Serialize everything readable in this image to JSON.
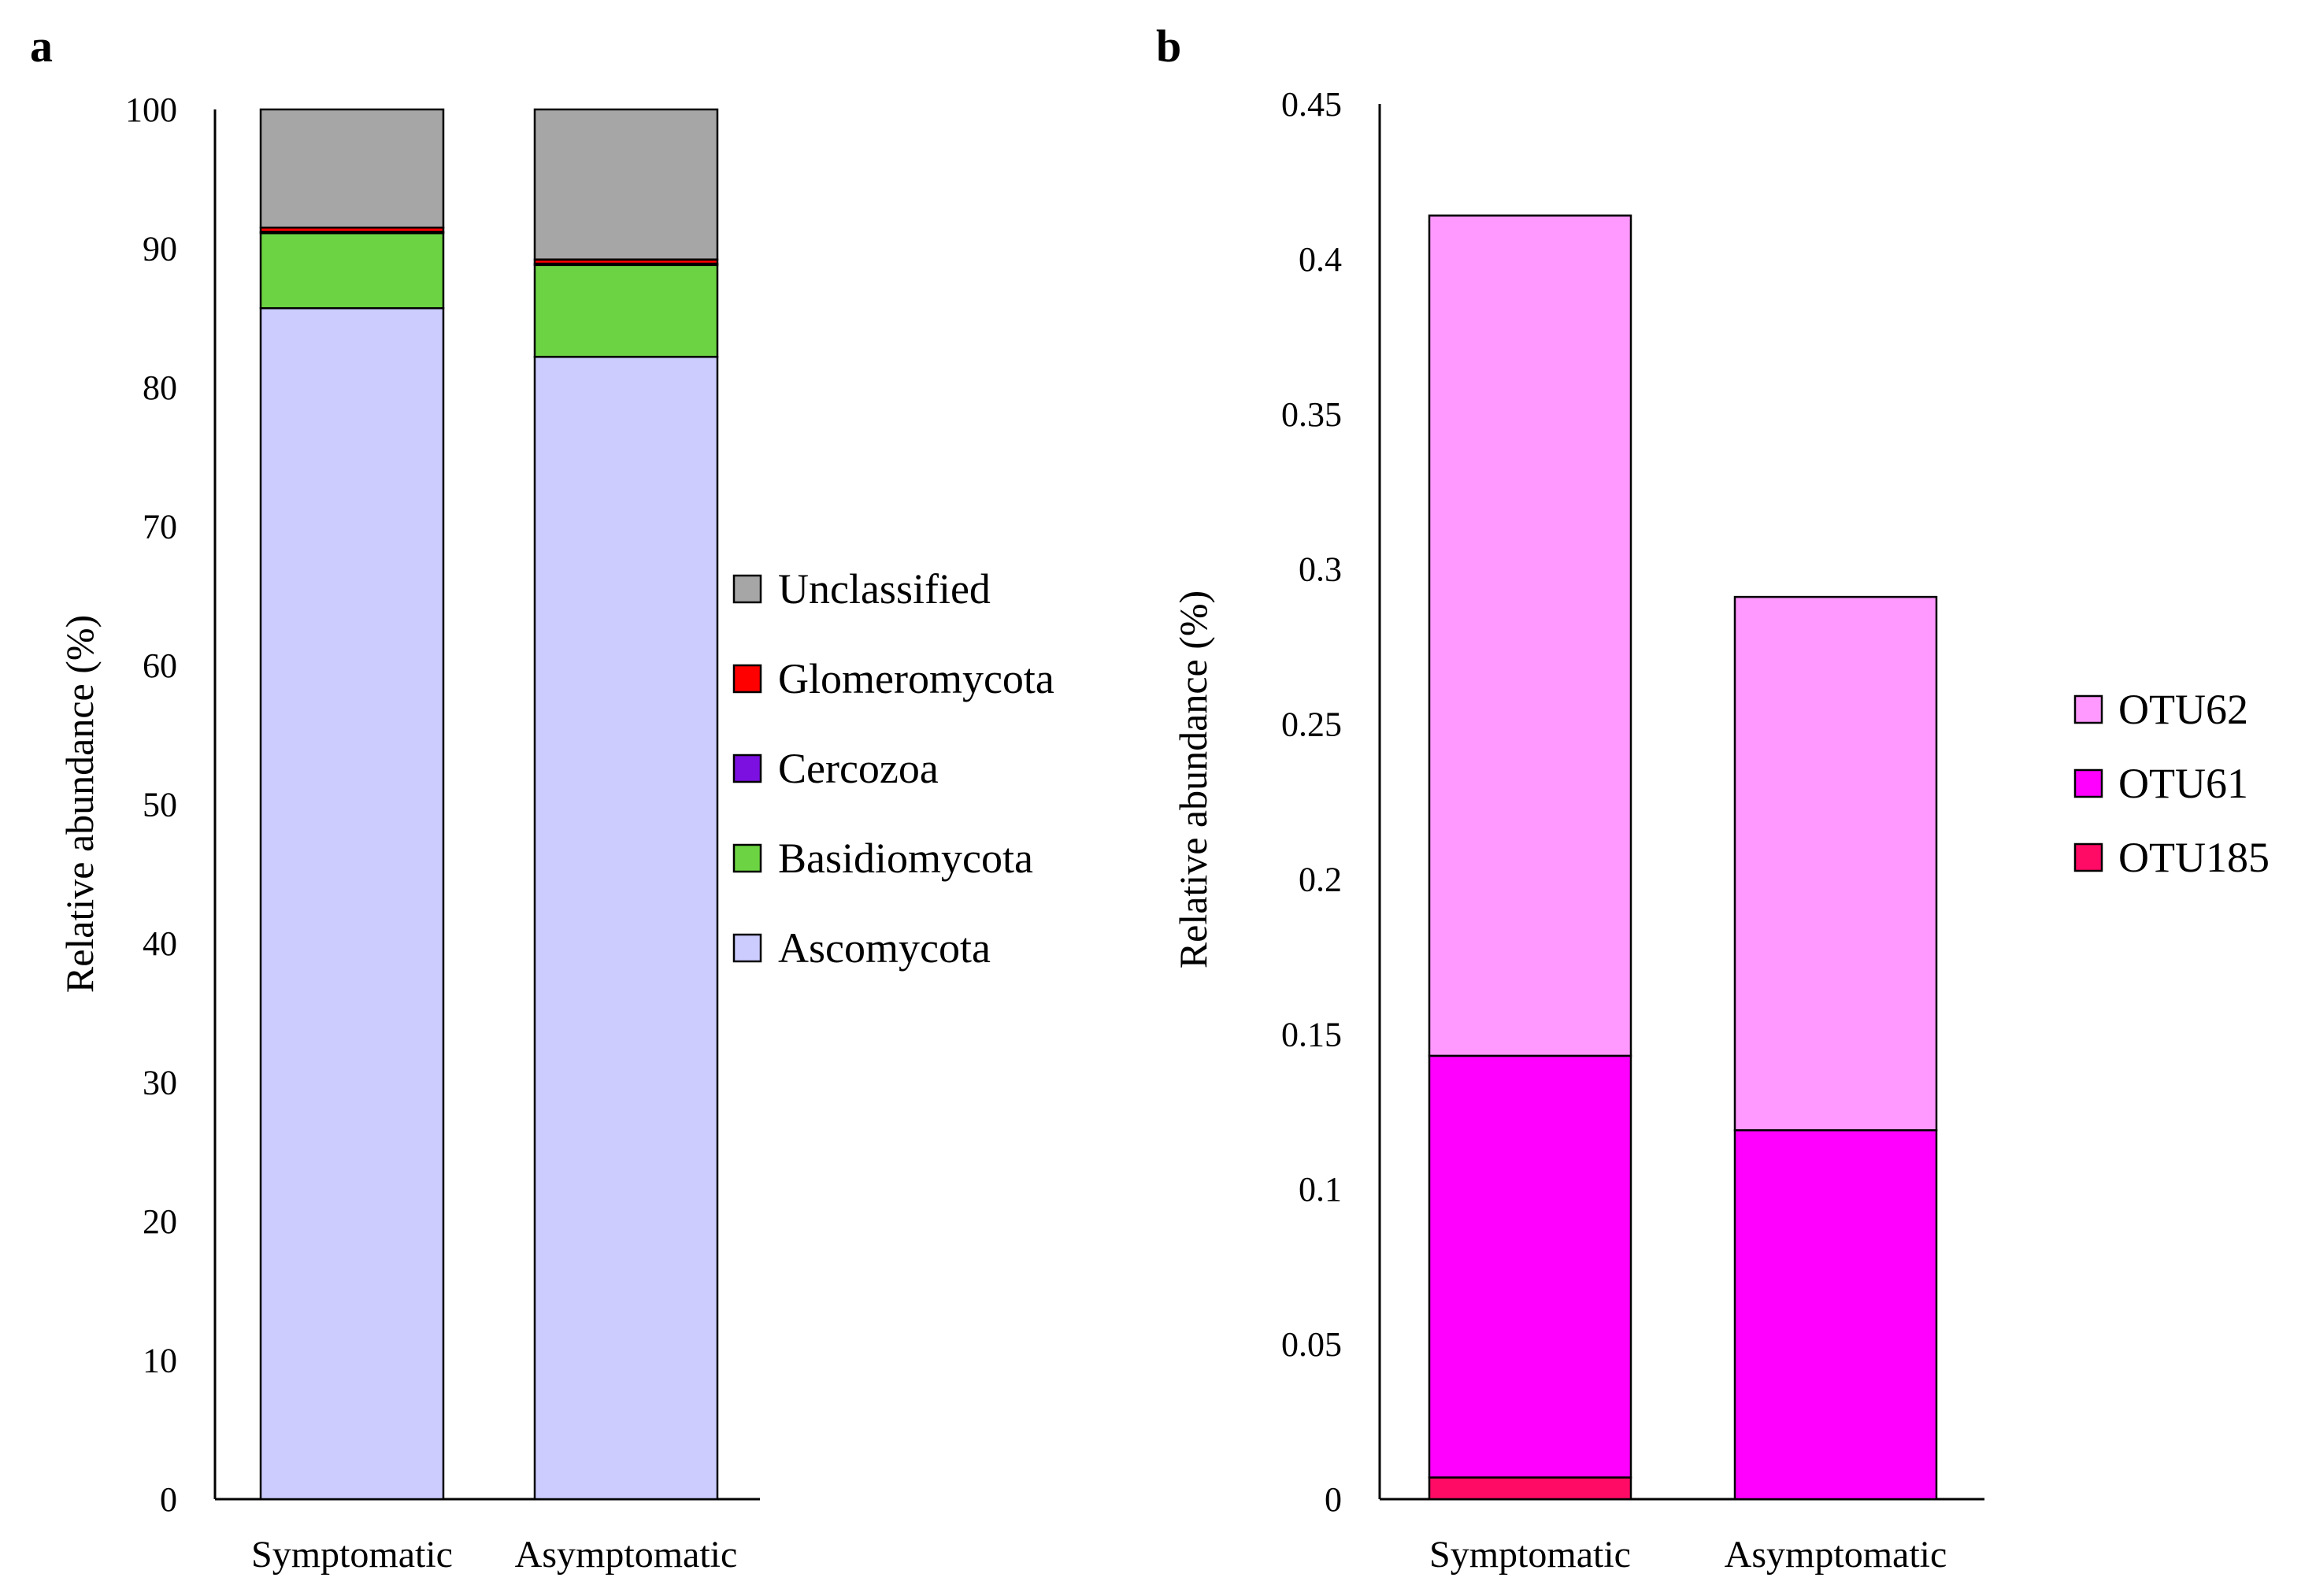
{
  "chart_data": [
    {
      "panel_label": "a",
      "type": "bar",
      "stacked": true,
      "ylabel": "Relative abundance (%)",
      "xlabel": "",
      "ylim": [
        0,
        100
      ],
      "yticks": [
        "0",
        "10",
        "20",
        "30",
        "40",
        "50",
        "60",
        "70",
        "80",
        "90",
        "100"
      ],
      "categories": [
        "Symptomatic",
        "Asymptomatic"
      ],
      "series": [
        {
          "name": "Ascomycota",
          "color": "#ccccff",
          "values": [
            85.7,
            82.2
          ]
        },
        {
          "name": "Basidiomycota",
          "color": "#6cd443",
          "values": [
            5.4,
            6.6
          ]
        },
        {
          "name": "Cercozoa",
          "color": "#7b10e0",
          "values": [
            0.1,
            0.1
          ]
        },
        {
          "name": "Glomeromycota",
          "color": "#ff0000",
          "values": [
            0.3,
            0.3
          ]
        },
        {
          "name": "Unclassified",
          "color": "#a6a6a6",
          "values": [
            8.5,
            10.8
          ]
        }
      ],
      "legend": [
        "Unclassified",
        "Glomeromycota",
        "Cercozoa",
        "Basidiomycota",
        "Ascomycota"
      ],
      "legend_position": "right"
    },
    {
      "panel_label": "b",
      "type": "bar",
      "stacked": true,
      "ylabel": "Relative abundance (%)",
      "xlabel": "",
      "ylim": [
        0,
        0.45
      ],
      "yticks": [
        "0",
        "0.05",
        "0.1",
        "0.15",
        "0.2",
        "0.25",
        "0.3",
        "0.35",
        "0.4",
        "0.45"
      ],
      "categories": [
        "Symptomatic",
        "Asymptomatic"
      ],
      "series": [
        {
          "name": "OTU185",
          "color": "#ff0a64",
          "values": [
            0.007,
            0
          ]
        },
        {
          "name": "OTU61",
          "color": "#ff00ff",
          "values": [
            0.136,
            0.119
          ]
        },
        {
          "name": "OTU62",
          "color": "#ff99ff",
          "values": [
            0.271,
            0.172
          ]
        }
      ],
      "legend": [
        "OTU62",
        "OTU61",
        "OTU185"
      ],
      "legend_position": "right"
    }
  ]
}
